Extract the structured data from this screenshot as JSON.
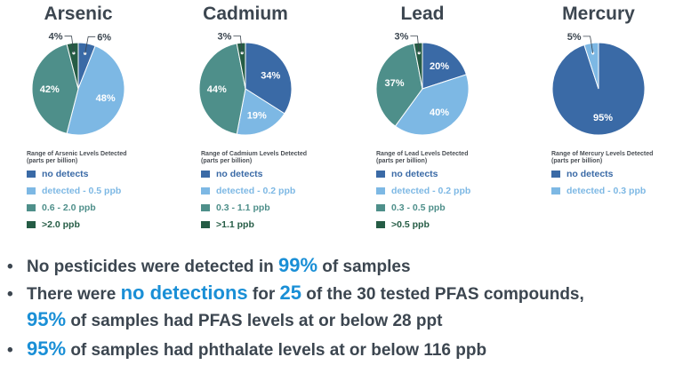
{
  "colors": {
    "no_detects": "#3a6aa6",
    "level2": "#7db8e4",
    "level3": "#4e8f8a",
    "level4": "#255c45",
    "highlight": "#1a8fd6",
    "text": "#3c4650"
  },
  "chart_data": [
    {
      "type": "pie",
      "title": "Arsenic",
      "caption_line1": "Range of Arsenic Levels Detected",
      "caption_line2": "(parts per billion)",
      "series": [
        {
          "name": "no detects",
          "value": 6
        },
        {
          "name": "detected - 0.5 ppb",
          "value": 48
        },
        {
          "name": "0.6 - 2.0 ppb",
          "value": 42
        },
        {
          "name": ">2.0 ppb",
          "value": 4
        }
      ]
    },
    {
      "type": "pie",
      "title": "Cadmium",
      "caption_line1": "Range of Cadmium Levels Detected",
      "caption_line2": "(parts per billion)",
      "series": [
        {
          "name": "no detects",
          "value": 34
        },
        {
          "name": "detected - 0.2 ppb",
          "value": 19
        },
        {
          "name": "0.3 - 1.1 ppb",
          "value": 44
        },
        {
          "name": ">1.1 ppb",
          "value": 3
        }
      ]
    },
    {
      "type": "pie",
      "title": "Lead",
      "caption_line1": "Range of Lead Levels Detected",
      "caption_line2": "(parts per billion)",
      "series": [
        {
          "name": "no detects",
          "value": 20
        },
        {
          "name": "detected - 0.2 ppb",
          "value": 40
        },
        {
          "name": "0.3 - 0.5 ppb",
          "value": 37
        },
        {
          "name": ">0.5 ppb",
          "value": 3
        }
      ]
    },
    {
      "type": "pie",
      "title": "Mercury",
      "caption_line1": "Range of Mercury Levels Detected",
      "caption_line2": "(parts per billion)",
      "series": [
        {
          "name": "no detects",
          "value": 95
        },
        {
          "name": "detected - 0.3 ppb",
          "value": 5
        }
      ]
    }
  ],
  "bullets": {
    "b1": {
      "pre": "No pesticides were detected in ",
      "hl": "99%",
      "post": " of samples"
    },
    "b2": {
      "pre": "There were ",
      "hl1": "no detections",
      "mid1": " for ",
      "hl2": "25",
      "mid2": " of the 30 tested PFAS compounds,"
    },
    "b2b": {
      "hl": "95%",
      "post": " of samples had PFAS levels at or below 28 ppt"
    },
    "b3": {
      "hl": "95%",
      "post": " of samples had phthalate levels at or below 116 ppb"
    }
  }
}
